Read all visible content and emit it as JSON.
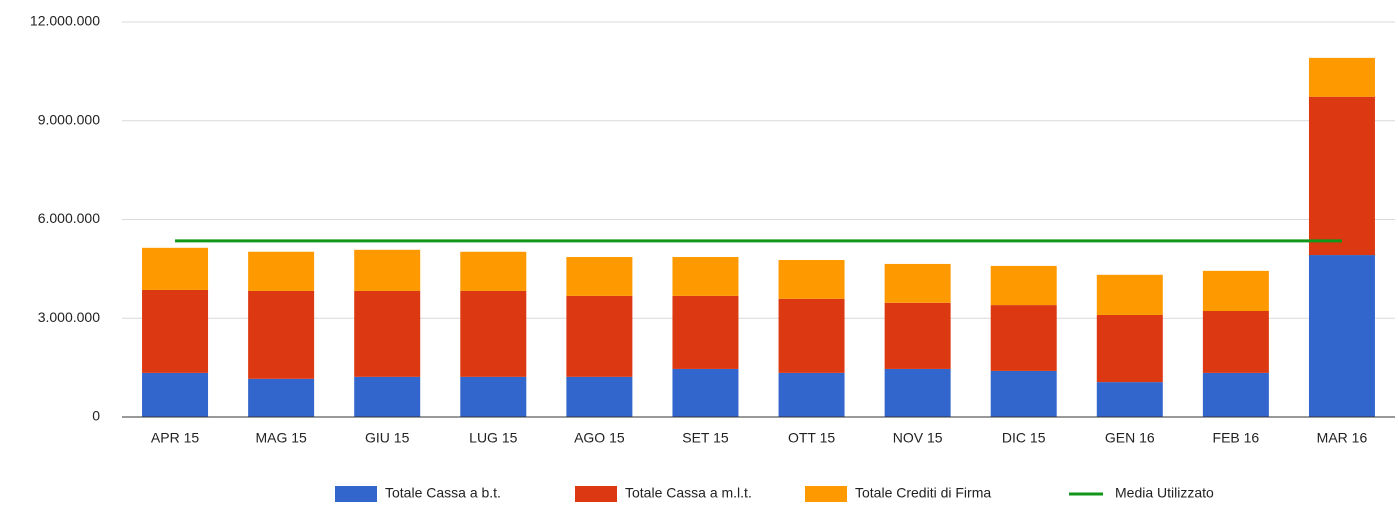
{
  "chart_data": {
    "type": "bar",
    "stacked": true,
    "categories": [
      "APR 15",
      "MAG 15",
      "GIU 15",
      "LUG 15",
      "AGO 15",
      "SET 15",
      "OTT 15",
      "NOV 15",
      "DIC 15",
      "GEN 16",
      "FEB 16",
      "MAR 16"
    ],
    "series": [
      {
        "name": "Totale Cassa a b.t.",
        "color": "#3366cc",
        "values": [
          1340000,
          1160000,
          1220000,
          1220000,
          1220000,
          1460000,
          1340000,
          1460000,
          1400000,
          1060000,
          1340000,
          4920000
        ]
      },
      {
        "name": "Totale Cassa a m.l.t.",
        "color": "#dc3912",
        "values": [
          2520000,
          2670000,
          2610000,
          2610000,
          2460000,
          2220000,
          2250000,
          2010000,
          2000000,
          2040000,
          1880000,
          4810000
        ]
      },
      {
        "name": "Totale Crediti di Firma",
        "color": "#ff9900",
        "values": [
          1280000,
          1190000,
          1250000,
          1190000,
          1180000,
          1180000,
          1180000,
          1180000,
          1190000,
          1220000,
          1220000,
          1180000
        ]
      },
      {
        "name": "Media Utilizzato",
        "color": "#109618",
        "type": "line",
        "values": [
          5350000,
          5350000,
          5350000,
          5350000,
          5350000,
          5350000,
          5350000,
          5350000,
          5350000,
          5350000,
          5350000,
          5350000
        ]
      }
    ],
    "ylim": [
      0,
      12000000
    ],
    "yticks": [
      0,
      {
        "value": 3000000,
        "label": "3.000.000"
      },
      {
        "value": 6000000,
        "label": "6.000.000"
      },
      {
        "value": 9000000,
        "label": "9.000.000"
      },
      {
        "value": 12000000,
        "label": "12.000.000"
      }
    ],
    "grid": true,
    "legend": "bottom"
  }
}
